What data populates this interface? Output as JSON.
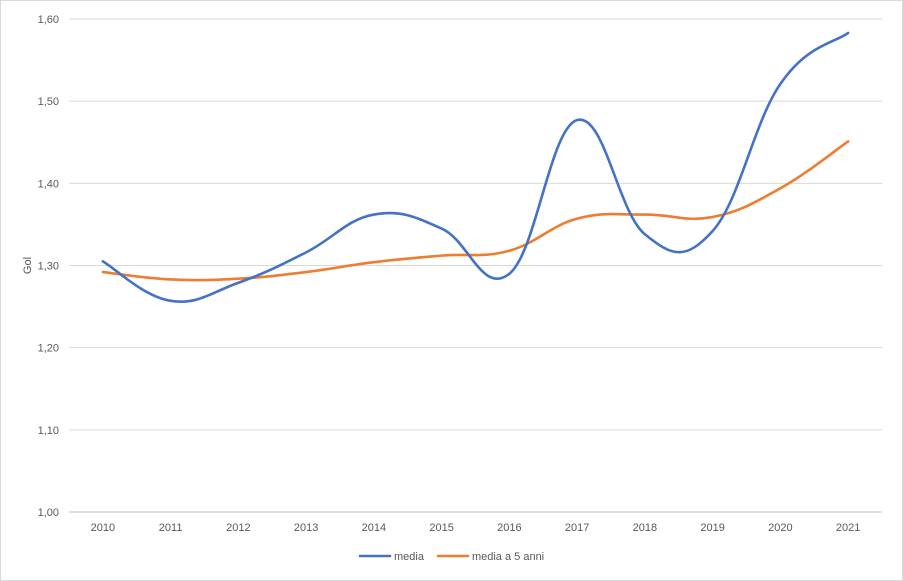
{
  "chart_data": {
    "type": "line",
    "title": "",
    "xlabel": "",
    "ylabel": "Gol",
    "ylim": [
      1.0,
      1.6
    ],
    "yticks": [
      "1,00",
      "1,10",
      "1,20",
      "1,30",
      "1,40",
      "1,50",
      "1,60"
    ],
    "categories": [
      "2010",
      "2011",
      "2012",
      "2013",
      "2014",
      "2015",
      "2016",
      "2017",
      "2018",
      "2019",
      "2020",
      "2021"
    ],
    "grid": true,
    "legend_position": "bottom",
    "series": [
      {
        "name": "media",
        "color": "#4472c4",
        "values": [
          1.305,
          1.257,
          1.279,
          1.316,
          1.362,
          1.345,
          1.29,
          1.477,
          1.338,
          1.342,
          1.521,
          1.583
        ]
      },
      {
        "name": "media a 5 anni",
        "color": "#ed7d31",
        "values": [
          1.292,
          1.283,
          1.284,
          1.292,
          1.304,
          1.312,
          1.318,
          1.357,
          1.362,
          1.359,
          1.394,
          1.451
        ]
      }
    ]
  }
}
